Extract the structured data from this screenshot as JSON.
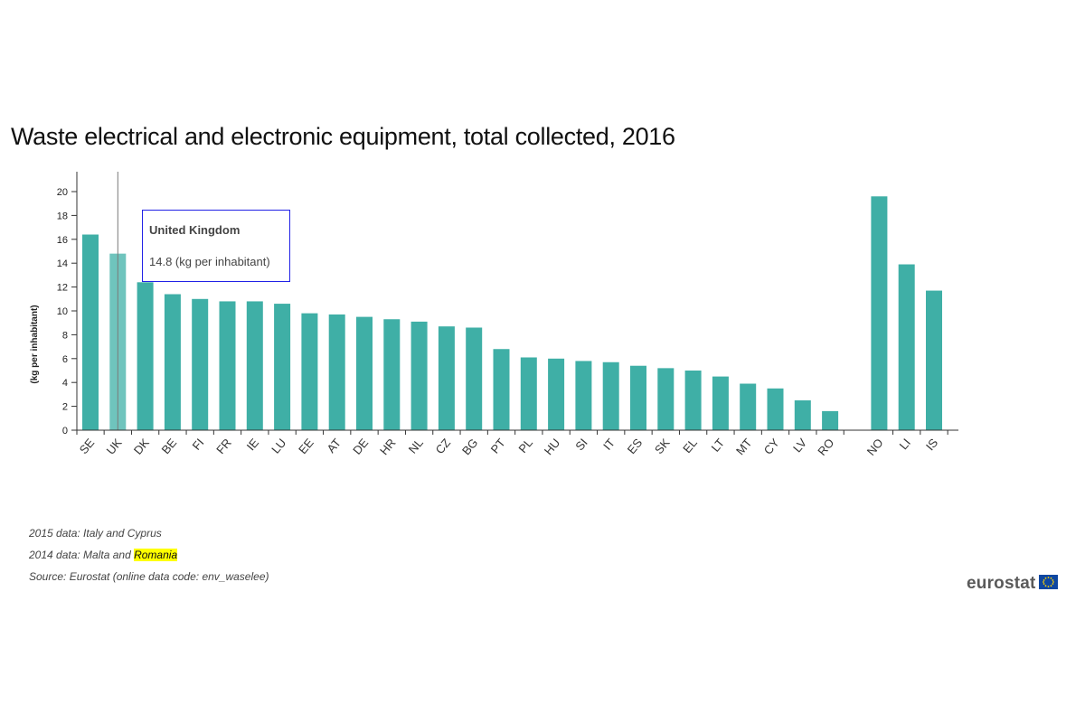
{
  "chart_data": {
    "type": "bar",
    "title": "Waste electrical and electronic equipment, total collected, 2016",
    "ylabel": "(kg per inhabitant)",
    "xlabel": "",
    "ylim": [
      0,
      21.5
    ],
    "yticks": [
      0,
      2,
      4,
      6,
      8,
      10,
      12,
      14,
      16,
      18,
      20
    ],
    "grid": false,
    "categories": [
      "SE",
      "UK",
      "DK",
      "BE",
      "FI",
      "FR",
      "IE",
      "LU",
      "EE",
      "AT",
      "DE",
      "HR",
      "NL",
      "CZ",
      "BG",
      "PT",
      "PL",
      "HU",
      "SI",
      "IT",
      "ES",
      "SK",
      "EL",
      "LT",
      "MT",
      "CY",
      "LV",
      "RO",
      "NO",
      "LI",
      "IS"
    ],
    "values": [
      16.4,
      14.8,
      12.4,
      11.4,
      11.0,
      10.8,
      10.8,
      10.6,
      9.8,
      9.7,
      9.5,
      9.3,
      9.1,
      8.7,
      8.6,
      6.8,
      6.1,
      6.0,
      5.8,
      5.7,
      5.4,
      5.2,
      5.0,
      4.5,
      3.9,
      3.5,
      2.5,
      1.6,
      19.6,
      13.9,
      11.7
    ],
    "groups": [
      28,
      3
    ],
    "bar_color": "#3fafa6",
    "highlight_color": "#6fc4bd",
    "highlighted_category": "UK"
  },
  "tooltip": {
    "title": "United Kingdom",
    "value": "14.8 (kg per inhabitant)",
    "border_color": "#2121e6"
  },
  "footnotes": {
    "line1": "2015 data: Italy and Cyprus",
    "line2_prefix": "2014 data: Malta and ",
    "line2_highlight": "Romania",
    "line3": "Source: Eurostat (online data code: env_waselee)"
  },
  "logo": {
    "text": "eurostat",
    "icon": "eu-flag-icon"
  }
}
